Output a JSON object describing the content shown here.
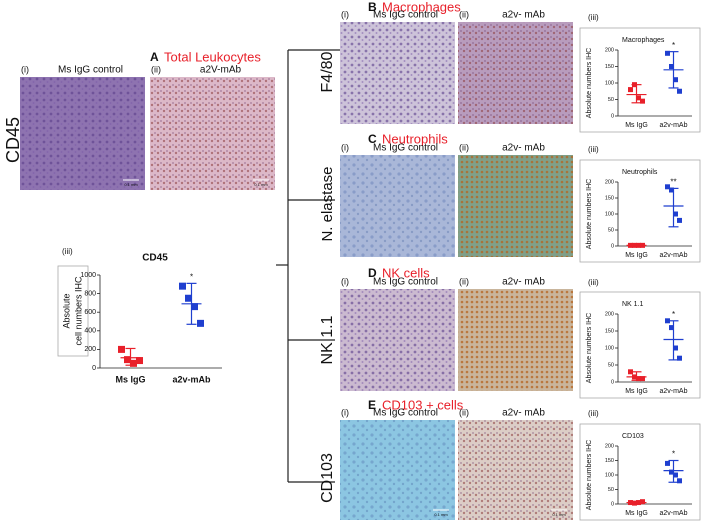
{
  "panels": [
    {
      "letter": "A",
      "title": "Total Leukocytes",
      "marker": "CD45",
      "images": [
        {
          "label": "(i)",
          "caption": "Ms IgG control",
          "scale": "0.1 mm"
        },
        {
          "label": "(ii)",
          "caption": "a2V-mAb",
          "scale": "0.1 mm"
        }
      ],
      "chart": {
        "type": "scatter",
        "label": "(iii)",
        "title": "CD45",
        "ylabel": [
          "Absolute",
          "cell numbers IHC"
        ],
        "categories": [
          "Ms IgG",
          "a2v-mAb"
        ],
        "ylim": [
          0,
          1000
        ],
        "yticks": [
          0,
          200,
          400,
          600,
          800,
          1000
        ],
        "groups": [
          {
            "color": "#e8202a",
            "values": [
              200,
              90,
              50,
              80
            ],
            "mean": 110,
            "error": [
              30,
              210
            ]
          },
          {
            "color": "#1f3fcf",
            "values": [
              880,
              750,
              660,
              480
            ],
            "mean": 690,
            "error": [
              470,
              910
            ]
          }
        ],
        "annotation": "*"
      }
    },
    {
      "letter": "B",
      "title": "Macrophages",
      "marker": "F4/80",
      "images": [
        {
          "label": "(i)",
          "caption": "Ms IgG control"
        },
        {
          "label": "(ii)",
          "caption": "a2v- mAb"
        }
      ],
      "chart": {
        "type": "scatter",
        "label": "(iii)",
        "title": "Macrophages",
        "ylabel": [
          "Absolute numbers IHC"
        ],
        "categories": [
          "Ms IgG",
          "a2v-mAb"
        ],
        "ylim": [
          0,
          200
        ],
        "yticks": [
          0,
          50,
          100,
          150,
          200
        ],
        "groups": [
          {
            "color": "#e8202a",
            "values": [
              80,
              95,
              55,
              45
            ],
            "mean": 65,
            "error": [
              40,
              95
            ]
          },
          {
            "color": "#1f3fcf",
            "values": [
              190,
              150,
              110,
              75
            ],
            "mean": 140,
            "error": [
              85,
              195
            ]
          }
        ],
        "annotation": "*"
      }
    },
    {
      "letter": "C",
      "title": "Neutrophils",
      "marker": "N. elastase",
      "images": [
        {
          "label": "(i)",
          "caption": "Ms IgG control"
        },
        {
          "label": "(ii)",
          "caption": "a2v- mAb"
        }
      ],
      "chart": {
        "type": "scatter",
        "label": "(iii)",
        "title": "Neutrophils",
        "ylabel": [
          "Absolute numbers IHC"
        ],
        "categories": [
          "Ms IgG",
          "a2v-mAb"
        ],
        "ylim": [
          0,
          200
        ],
        "yticks": [
          0,
          50,
          100,
          150,
          200
        ],
        "groups": [
          {
            "color": "#e8202a",
            "values": [
              2,
              2,
              2,
              2
            ],
            "mean": 2,
            "error": [
              1,
              3
            ]
          },
          {
            "color": "#1f3fcf",
            "values": [
              185,
              175,
              100,
              80
            ],
            "mean": 125,
            "error": [
              60,
              180
            ]
          }
        ],
        "annotation": "**"
      }
    },
    {
      "letter": "D",
      "title": "NK cells",
      "marker": "NK 1.1",
      "images": [
        {
          "label": "(i)",
          "caption": "Ms IgG control"
        },
        {
          "label": "(ii)",
          "caption": "a2v- mAb"
        }
      ],
      "chart": {
        "type": "scatter",
        "label": "(iii)",
        "title": "NK 1.1",
        "ylabel": [
          "Absolute numbers IHC"
        ],
        "categories": [
          "Ms IgG",
          "a2v-mAb"
        ],
        "ylim": [
          0,
          200
        ],
        "yticks": [
          0,
          50,
          100,
          150,
          200
        ],
        "groups": [
          {
            "color": "#e8202a",
            "values": [
              30,
              15,
              10,
              10
            ],
            "mean": 15,
            "error": [
              5,
              30
            ]
          },
          {
            "color": "#1f3fcf",
            "values": [
              180,
              160,
              100,
              70
            ],
            "mean": 125,
            "error": [
              65,
              180
            ]
          }
        ],
        "annotation": "*"
      }
    },
    {
      "letter": "E",
      "title": "CD103 + cells",
      "marker": "CD103",
      "images": [
        {
          "label": "(i)",
          "caption": "Ms IgG control",
          "scale": "0.1 mm"
        },
        {
          "label": "(ii)",
          "caption": "a2v- mAb",
          "scale": "0.1 mm"
        }
      ],
      "chart": {
        "type": "scatter",
        "label": "(iii)",
        "title": "CD103",
        "ylabel": [
          "Absolute numbers IHC"
        ],
        "categories": [
          "Ms IgG",
          "a2v-mAb"
        ],
        "ylim": [
          0,
          200
        ],
        "yticks": [
          0,
          50,
          100,
          150,
          200
        ],
        "groups": [
          {
            "color": "#e8202a",
            "values": [
              5,
              3,
              5,
              8
            ],
            "mean": 5,
            "error": [
              2,
              8
            ]
          },
          {
            "color": "#1f3fcf",
            "values": [
              140,
              110,
              100,
              80
            ],
            "mean": 115,
            "error": [
              75,
              150
            ]
          }
        ],
        "annotation": "*"
      }
    }
  ]
}
